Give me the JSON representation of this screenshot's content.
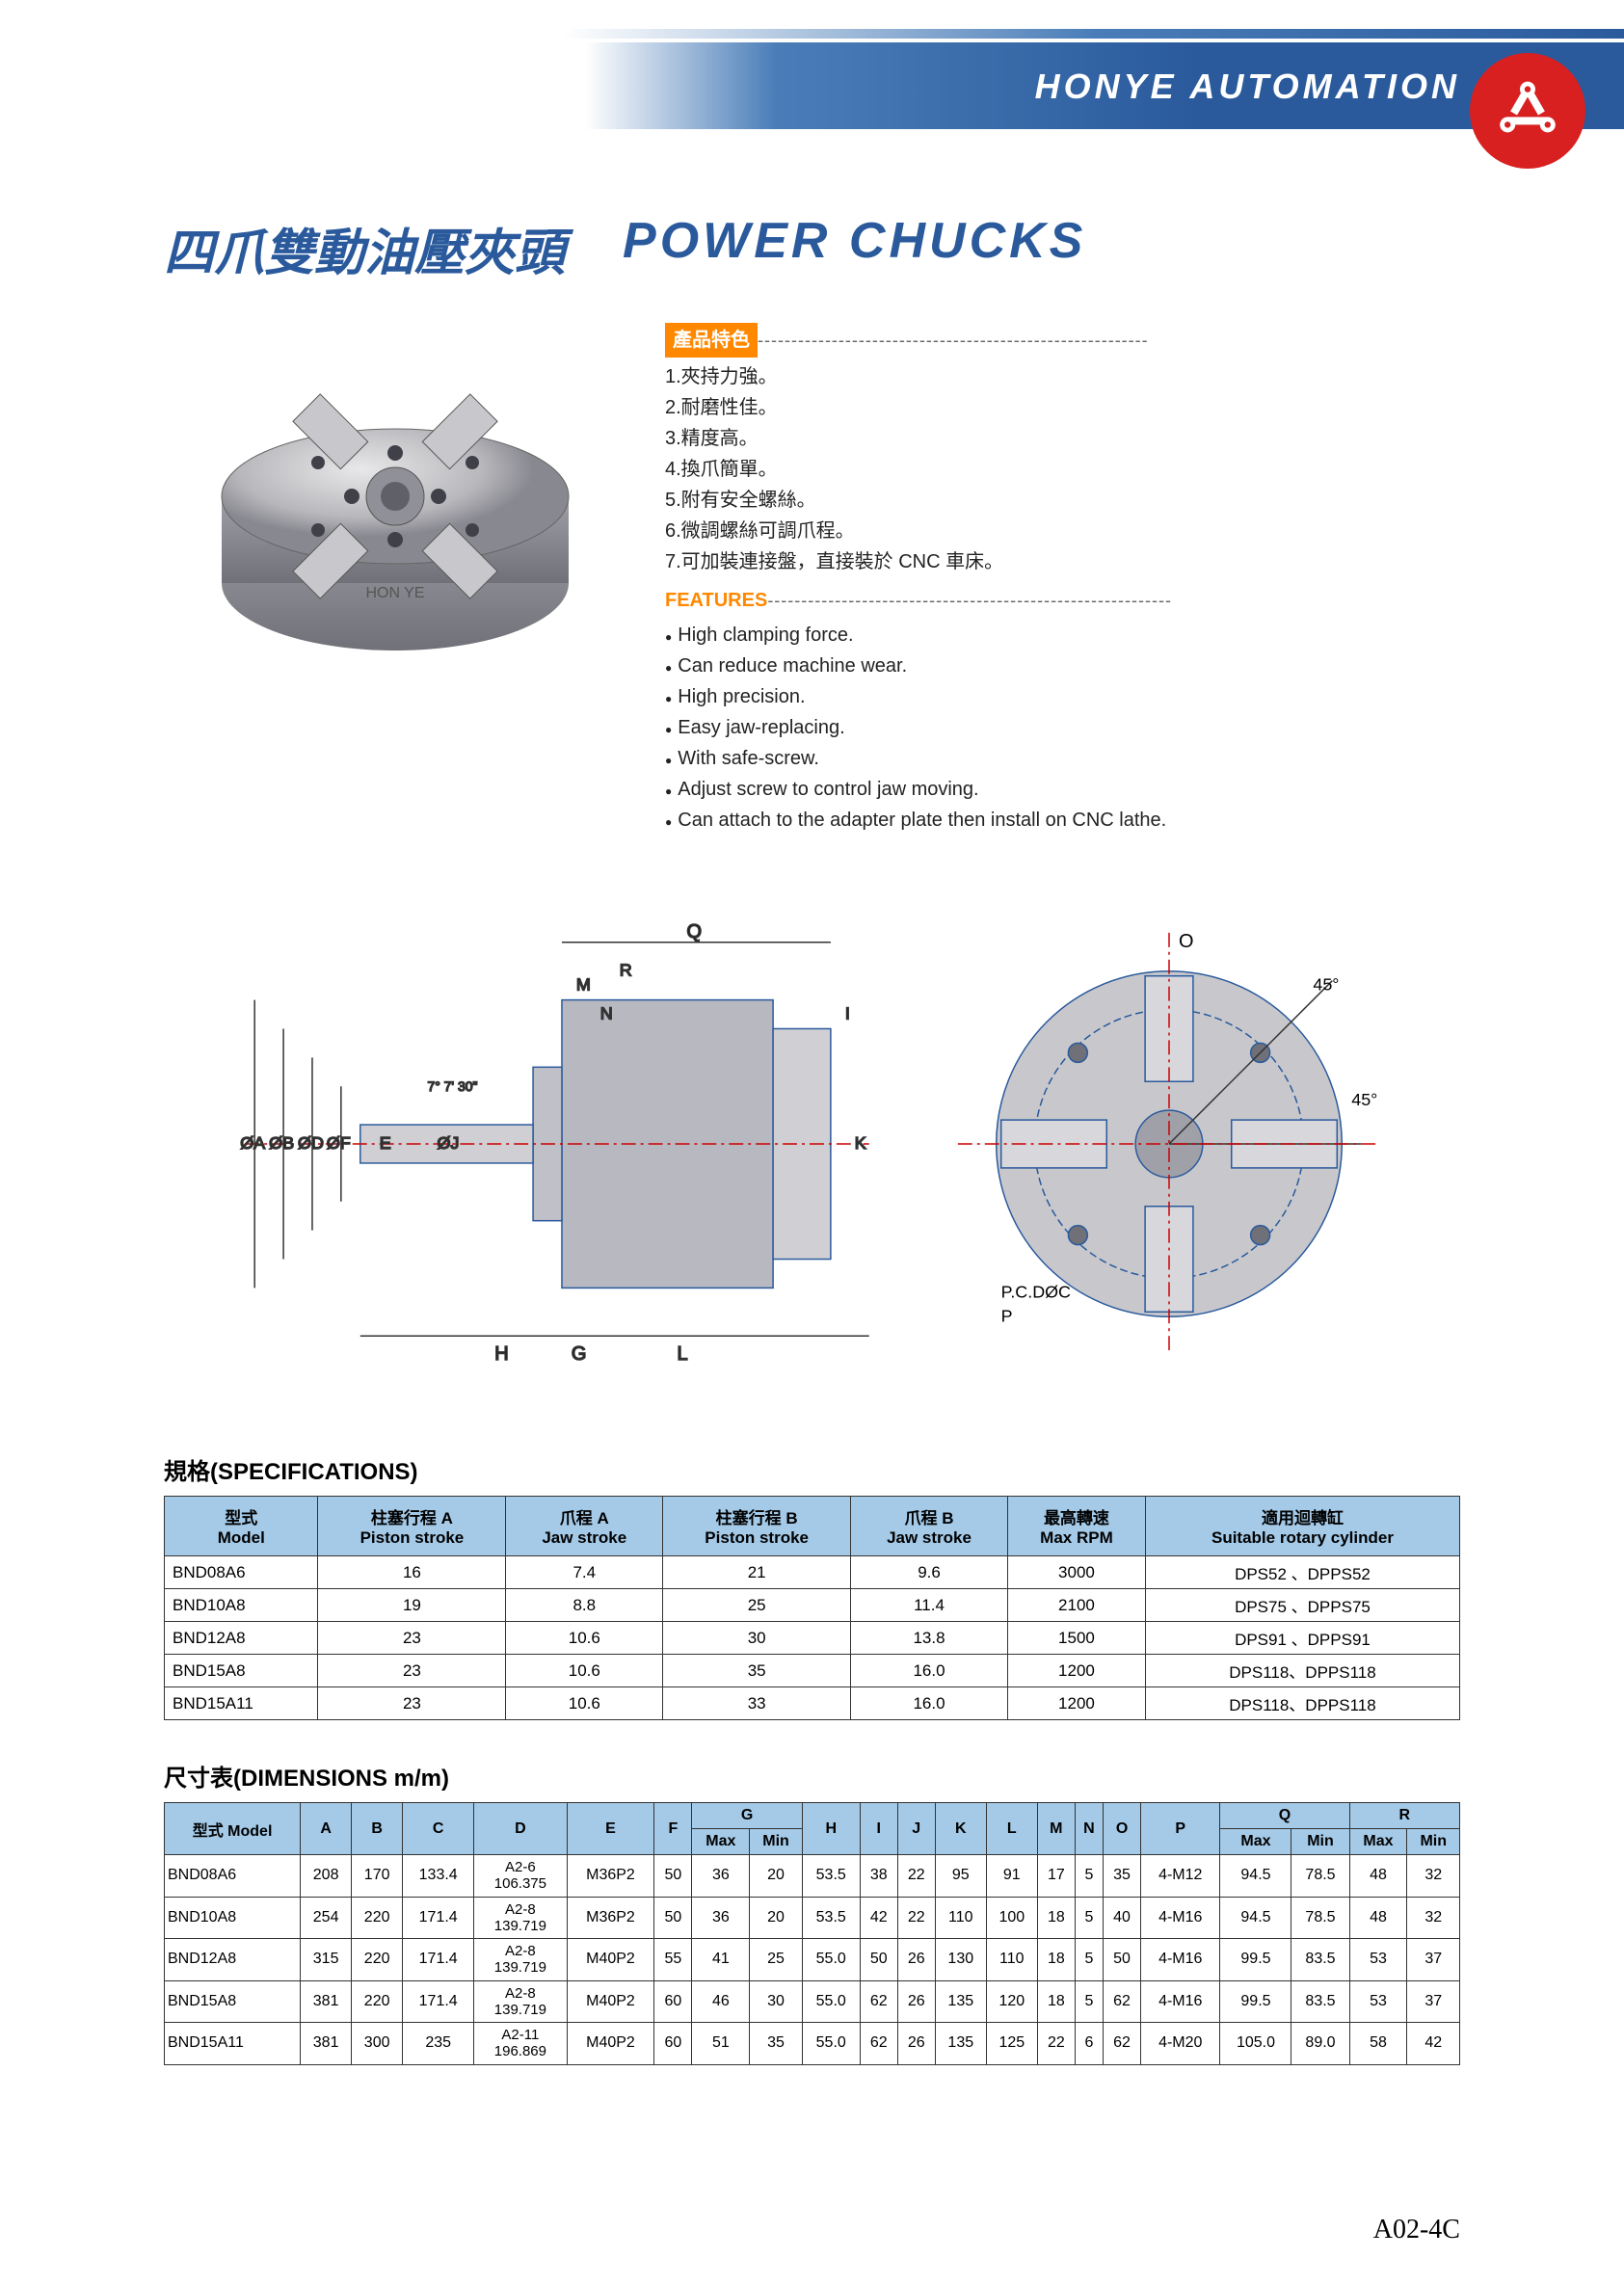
{
  "header": {
    "brand": "HONYE AUTOMATION",
    "logo_color": "#d82020",
    "band_colors": [
      "#4a7db8",
      "#2a5a9c"
    ]
  },
  "titles": {
    "cn": "四爪雙動油壓夾頭",
    "en": "POWER  CHUCKS",
    "color": "#2a5a9c"
  },
  "features_cn": {
    "badge": "產品特色",
    "badge_bg": "#ff8800",
    "items": [
      "1.夾持力強。",
      "2.耐磨性佳。",
      "3.精度高。",
      "4.換爪簡單。",
      "5.附有安全螺絲。",
      "6.微調螺絲可調爪程。",
      "7.可加裝連接盤，直接裝於 CNC 車床。"
    ]
  },
  "features_en": {
    "badge": "FEATURES",
    "badge_color": "#ff8800",
    "items": [
      "High clamping force.",
      "Can reduce machine wear.",
      "High precision.",
      "Easy jaw-replacing.",
      "With safe-screw.",
      "Adjust screw to control jaw moving.",
      "Can attach to the adapter plate then install on CNC lathe."
    ]
  },
  "diagrams": {
    "side_labels": [
      "Q",
      "M",
      "R",
      "N",
      "I",
      "K",
      "ØA",
      "ØB",
      "ØD",
      "ØF",
      "E",
      "ØJ",
      "7° 7' 30\"",
      "H",
      "G",
      "L"
    ],
    "front_labels": [
      "O",
      "45°",
      "45°",
      "P.C.DØC",
      "P"
    ]
  },
  "spec_section_title": "規格(SPECIFICATIONS)",
  "spec_table": {
    "header_bg": "#a4cae8",
    "columns": [
      {
        "cn": "型式",
        "en": "Model"
      },
      {
        "cn": "柱塞行程 A",
        "en": "Piston  stroke"
      },
      {
        "cn": "爪程 A",
        "en": "Jaw  stroke"
      },
      {
        "cn": "柱塞行程 B",
        "en": "Piston  stroke"
      },
      {
        "cn": "爪程 B",
        "en": "Jaw  stroke"
      },
      {
        "cn": "最高轉速",
        "en": "Max  RPM"
      },
      {
        "cn": "適用迴轉缸",
        "en": "Suitable  rotary  cylinder"
      }
    ],
    "rows": [
      [
        "BND08A6",
        "16",
        "7.4",
        "21",
        "9.6",
        "3000",
        "DPS52 、DPPS52"
      ],
      [
        "BND10A8",
        "19",
        "8.8",
        "25",
        "11.4",
        "2100",
        "DPS75 、DPPS75"
      ],
      [
        "BND12A8",
        "23",
        "10.6",
        "30",
        "13.8",
        "1500",
        "DPS91 、DPPS91"
      ],
      [
        "BND15A8",
        "23",
        "10.6",
        "35",
        "16.0",
        "1200",
        "DPS118、DPPS118"
      ],
      [
        "BND15A11",
        "23",
        "10.6",
        "33",
        "16.0",
        "1200",
        "DPS118、DPPS118"
      ]
    ]
  },
  "dim_section_title": "尺寸表(DIMENSIONS  m/m)",
  "dim_table": {
    "header_bg": "#a4cae8",
    "model_header": "型式 Model",
    "main_cols": [
      "A",
      "B",
      "C",
      "D",
      "E",
      "F"
    ],
    "g_col": "G",
    "g_sub": [
      "Max",
      "Min"
    ],
    "mid_cols": [
      "H",
      "I",
      "J",
      "K",
      "L",
      "M",
      "N",
      "O",
      "P"
    ],
    "q_col": "Q",
    "q_sub": [
      "Max",
      "Min"
    ],
    "r_col": "R",
    "r_sub": [
      "Max",
      "Min"
    ],
    "rows": [
      {
        "model": "BND08A6",
        "A": "208",
        "B": "170",
        "C": "133.4",
        "D": "A2-6\n106.375",
        "E": "M36P2",
        "F": "50",
        "Gmax": "36",
        "Gmin": "20",
        "H": "53.5",
        "I": "38",
        "J": "22",
        "K": "95",
        "L": "91",
        "M": "17",
        "N": "5",
        "O": "35",
        "P": "4-M12",
        "Qmax": "94.5",
        "Qmin": "78.5",
        "Rmax": "48",
        "Rmin": "32"
      },
      {
        "model": "BND10A8",
        "A": "254",
        "B": "220",
        "C": "171.4",
        "D": "A2-8\n139.719",
        "E": "M36P2",
        "F": "50",
        "Gmax": "36",
        "Gmin": "20",
        "H": "53.5",
        "I": "42",
        "J": "22",
        "K": "110",
        "L": "100",
        "M": "18",
        "N": "5",
        "O": "40",
        "P": "4-M16",
        "Qmax": "94.5",
        "Qmin": "78.5",
        "Rmax": "48",
        "Rmin": "32"
      },
      {
        "model": "BND12A8",
        "A": "315",
        "B": "220",
        "C": "171.4",
        "D": "A2-8\n139.719",
        "E": "M40P2",
        "F": "55",
        "Gmax": "41",
        "Gmin": "25",
        "H": "55.0",
        "I": "50",
        "J": "26",
        "K": "130",
        "L": "110",
        "M": "18",
        "N": "5",
        "O": "50",
        "P": "4-M16",
        "Qmax": "99.5",
        "Qmin": "83.5",
        "Rmax": "53",
        "Rmin": "37"
      },
      {
        "model": "BND15A8",
        "A": "381",
        "B": "220",
        "C": "171.4",
        "D": "A2-8\n139.719",
        "E": "M40P2",
        "F": "60",
        "Gmax": "46",
        "Gmin": "30",
        "H": "55.0",
        "I": "62",
        "J": "26",
        "K": "135",
        "L": "120",
        "M": "18",
        "N": "5",
        "O": "62",
        "P": "4-M16",
        "Qmax": "99.5",
        "Qmin": "83.5",
        "Rmax": "53",
        "Rmin": "37"
      },
      {
        "model": "BND15A11",
        "A": "381",
        "B": "300",
        "C": "235",
        "D": "A2-11\n196.869",
        "E": "M40P2",
        "F": "60",
        "Gmax": "51",
        "Gmin": "35",
        "H": "55.0",
        "I": "62",
        "J": "26",
        "K": "135",
        "L": "125",
        "M": "22",
        "N": "6",
        "O": "62",
        "P": "4-M20",
        "Qmax": "105.0",
        "Qmin": "89.0",
        "Rmax": "58",
        "Rmin": "42"
      }
    ]
  },
  "page_number": "A02-4C"
}
